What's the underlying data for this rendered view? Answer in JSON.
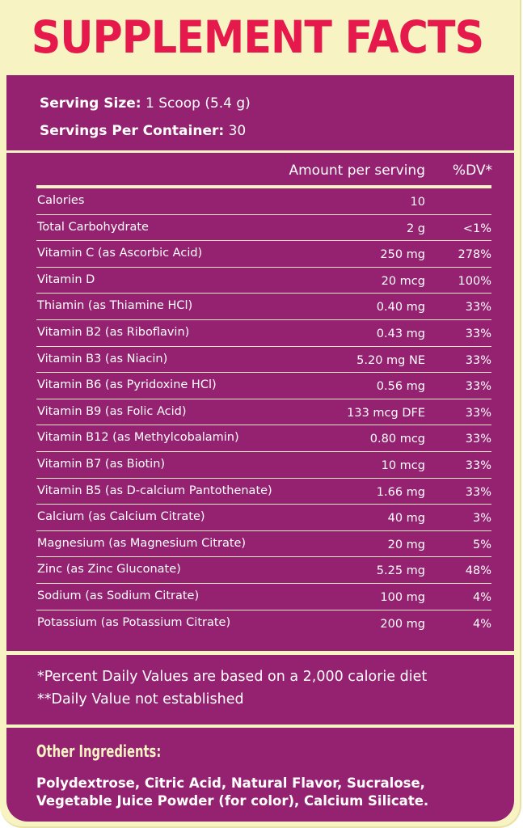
{
  "title": "SUPPLEMENT FACTS",
  "serving": {
    "size_label": "Serving Size:",
    "size_value": "1 Scoop (5.4 g)",
    "per_container_label": "Servings Per Container:",
    "per_container_value": "30"
  },
  "table": {
    "amount_header": "Amount per serving",
    "dv_header": "%DV*",
    "rows": [
      {
        "name": "Calories",
        "amount": "10",
        "dv": ""
      },
      {
        "name": "Total Carbohydrate",
        "amount": "2 g",
        "dv": "<1%"
      },
      {
        "name": "Vitamin C (as Ascorbic Acid)",
        "amount": "250 mg",
        "dv": "278%"
      },
      {
        "name": "Vitamin D",
        "amount": "20 mcg",
        "dv": "100%"
      },
      {
        "name": "Thiamin (as Thiamine HCl)",
        "amount": "0.40 mg",
        "dv": "33%"
      },
      {
        "name": "Vitamin B2 (as Riboflavin)",
        "amount": "0.43 mg",
        "dv": "33%"
      },
      {
        "name": "Vitamin B3 (as Niacin)",
        "amount": "5.20 mg NE",
        "dv": "33%"
      },
      {
        "name": "Vitamin B6 (as Pyridoxine HCl)",
        "amount": "0.56 mg",
        "dv": "33%"
      },
      {
        "name": "Vitamin B9 (as Folic Acid)",
        "amount": "133 mcg DFE",
        "dv": "33%"
      },
      {
        "name": "Vitamin B12 (as Methylcobalamin)",
        "amount": "0.80 mcg",
        "dv": "33%"
      },
      {
        "name": "Vitamin B7 (as Biotin)",
        "amount": "10 mcg",
        "dv": "33%"
      },
      {
        "name": "Vitamin B5 (as D-calcium Pantothenate)",
        "amount": "1.66 mg",
        "dv": "33%"
      },
      {
        "name": "Calcium (as Calcium Citrate)",
        "amount": "40 mg",
        "dv": "3%"
      },
      {
        "name": "Magnesium (as Magnesium Citrate)",
        "amount": "20 mg",
        "dv": "5%"
      },
      {
        "name": "Zinc (as Zinc Gluconate)",
        "amount": "5.25 mg",
        "dv": "48%"
      },
      {
        "name": "Sodium (as Sodium Citrate)",
        "amount": "100 mg",
        "dv": "4%"
      },
      {
        "name": "Potassium (as Potassium Citrate)",
        "amount": "200 mg",
        "dv": "4%"
      }
    ]
  },
  "footnotes": {
    "percent_dv": "*Percent Daily Values are based on a 2,000 calorie diet",
    "not_established": "**Daily Value not established"
  },
  "other_ingredients": {
    "title": "Other Ingredients:",
    "text": "Polydextrose, Citric Acid, Natural Flavor, Sucralose, Vegetable Juice Powder (for color), Calcium Silicate."
  },
  "colors": {
    "background": "#f7f3c2",
    "panel": "#952271",
    "title": "#e5194c",
    "text": "#ffffff"
  }
}
